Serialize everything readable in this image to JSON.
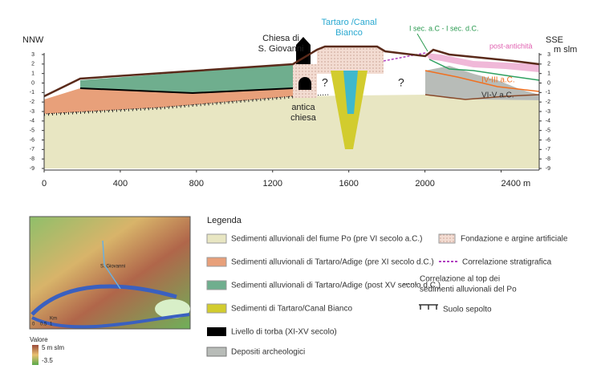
{
  "section": {
    "left_direction": "NNW",
    "right_direction": "SSE",
    "y_unit": "m slm",
    "xlim": [
      0,
      2600
    ],
    "ylim": [
      -9,
      3
    ],
    "xticks": [
      0,
      400,
      800,
      1200,
      1600,
      2000,
      {
        "value": 2400,
        "label": "2400 m"
      }
    ],
    "yticks": [
      3,
      2,
      1,
      0,
      -1,
      -2,
      -3,
      -4,
      -5,
      -6,
      -7,
      -8,
      -9
    ],
    "church_label": [
      "Chiesa di",
      "S. Giovanni"
    ],
    "river_label": [
      "Tartaro /Canal",
      "Bianco"
    ],
    "old_church_label": [
      "antica",
      "chiesa"
    ],
    "unknown_marks": [
      "?",
      "?"
    ],
    "period_labels": [
      "I sec. a.C - I sec. d.C.",
      "post-antichità",
      "IV-III a.C.",
      "VI-V  a.C."
    ]
  },
  "legend": {
    "title": "Legenda",
    "items": [
      "Sedimenti alluvionali del fiume Po (pre VI secolo a.C.)",
      "Sedimenti alluvionali di Tartaro/Adige (pre XI secolo d.C.)",
      "Sedimenti alluvionali di Tartaro/Adige (post XV secolo d.C.)",
      "Sedimenti di Tartaro/Canal Bianco",
      "Livello di torba (XI-XV secolo)",
      "Depositi archeologici",
      "Fondazione e argine artificiale",
      "Correlazione stratigrafica",
      [
        "Correlazione al top dei",
        "sedimenti alluvionali del Po"
      ],
      "Suolo sepolto"
    ]
  },
  "map": {
    "place_labels": [
      "S. Giovanni",
      "Km"
    ],
    "scale_ticks": [
      "0",
      "0.5",
      "1"
    ],
    "legend_title": "Valore",
    "legend_max": "5 m slm",
    "legend_min": "-3.5"
  }
}
